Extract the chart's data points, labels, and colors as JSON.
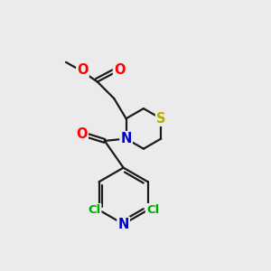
{
  "bg_color": "#ebebeb",
  "bond_color": "#1a1a1a",
  "bond_width": 1.6,
  "atom_colors": {
    "O": "#ff0000",
    "N": "#0000cc",
    "S": "#bbaa00",
    "Cl": "#00aa00",
    "C": "#1a1a1a"
  },
  "fs": 10.5,
  "fs_cl": 9.5
}
